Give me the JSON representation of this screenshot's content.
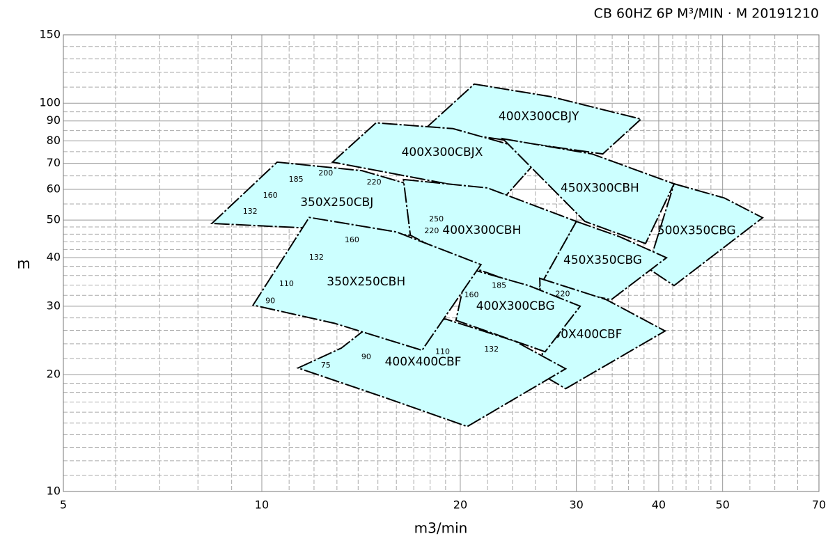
{
  "chart_data": {
    "type": "region",
    "title": "CB 60HZ 6P M³/MIN · M  20191210",
    "x_label": "m3/min",
    "y_label": "m",
    "x_log": true,
    "y_log": true,
    "xlim": [
      5,
      70
    ],
    "ylim": [
      10,
      150
    ],
    "xticks": [
      5,
      10,
      20,
      30,
      40,
      50,
      70
    ],
    "yticks": [
      10,
      20,
      30,
      40,
      50,
      60,
      70,
      80,
      90,
      100,
      150
    ],
    "x_grid": [
      6,
      7,
      8,
      9,
      11,
      12,
      13,
      14,
      15,
      16,
      17,
      18,
      19,
      22,
      24,
      26,
      28,
      32,
      34,
      36,
      38,
      42,
      44,
      46,
      48,
      55,
      60,
      65
    ],
    "y_grid": [
      11,
      12,
      13,
      14,
      15,
      16,
      17,
      18,
      19,
      22,
      24,
      26,
      28,
      32,
      34,
      36,
      38,
      42,
      44,
      46,
      48,
      55,
      65,
      75,
      85,
      95,
      110,
      120,
      130,
      140
    ],
    "grid": true,
    "color": "#ccffff",
    "regions": [
      {
        "name": "400X300CBJY",
        "x": [
          17.7,
          21,
          27.4,
          37.6,
          32.9
        ],
        "y": [
          86,
          112,
          104,
          91,
          74
        ]
      },
      {
        "name": "400X300CBJX",
        "x": [
          12.8,
          14.9,
          19.5,
          26.7,
          23.5
        ],
        "y": [
          70.5,
          89,
          86,
          74,
          58
        ]
      },
      {
        "name": "450X300CBH",
        "x": [
          23.2,
          31.7,
          42.2,
          38.2,
          30.9
        ],
        "y": [
          81,
          74,
          62,
          43.5,
          49.6
        ]
      },
      {
        "name": "500X350CBG",
        "x": [
          42.2,
          50.3,
          57.5,
          42.2,
          38.5
        ],
        "y": [
          62,
          57,
          50.7,
          33.9,
          37.6
        ]
      },
      {
        "name": "350X250CBJ",
        "x": [
          8.4,
          10.55,
          14.2,
          19,
          16.8,
          12.0
        ],
        "y": [
          49,
          70.5,
          67,
          58,
          45.7,
          47.6
        ],
        "kw": [
          {
            "value": 132,
            "x": 9.6,
            "y": 52.6
          },
          {
            "value": 160,
            "x": 10.3,
            "y": 57.8
          },
          {
            "value": 185,
            "x": 11.27,
            "y": 63.6
          },
          {
            "value": 200,
            "x": 12.5,
            "y": 66
          },
          {
            "value": 220,
            "x": 14.8,
            "y": 62.5
          }
        ]
      },
      {
        "name": "400X300CBH",
        "x": [
          16.4,
          22.0,
          30.0,
          26.3,
          21,
          16.8
        ],
        "y": [
          63.6,
          60.5,
          49.6,
          32.8,
          37.6,
          45.7
        ],
        "kw": [
          {
            "value": 250,
            "x": 18.4,
            "y": 50.2
          },
          {
            "value": 220,
            "x": 18.1,
            "y": 46.8
          }
        ]
      },
      {
        "name": "450X350CBG",
        "x": [
          30,
          34.9,
          41.1,
          33.9,
          26.4
        ],
        "y": [
          49.6,
          45.3,
          40,
          31.2,
          33.7
        ]
      },
      {
        "name": "450X400CBF",
        "x": [
          26.4,
          33.3,
          40.9,
          28.9,
          26.7
        ],
        "y": [
          35.4,
          31.2,
          25.9,
          18.4,
          19.9
        ],
        "kw": [
          {
            "value": 220,
            "x": 28.6,
            "y": 32.2
          }
        ]
      },
      {
        "name": "400X400CBF",
        "x": [
          11.35,
          13.2,
          14.5,
          19.0,
          24.2,
          28.9,
          20.5,
          15.3
        ],
        "y": [
          20.8,
          23.4,
          26.5,
          27.8,
          24.4,
          20.7,
          14.7,
          17.5
        ],
        "kw": [
          {
            "value": 75,
            "x": 12.5,
            "y": 21.1
          },
          {
            "value": 90,
            "x": 14.4,
            "y": 22.2
          },
          {
            "value": 110,
            "x": 18.8,
            "y": 22.9
          },
          {
            "value": 132,
            "x": 22.3,
            "y": 23.2
          }
        ]
      },
      {
        "name": "400X300CBG",
        "x": [
          20.5,
          25.4,
          30.4,
          26.9,
          19.7
        ],
        "y": [
          37.6,
          33.9,
          30,
          22.9,
          27.6
        ],
        "kw": [
          {
            "value": 185,
            "x": 22.9,
            "y": 33.9
          },
          {
            "value": 160,
            "x": 20.8,
            "y": 32.0
          }
        ]
      },
      {
        "name": "350X250CBH",
        "x": [
          9.7,
          11.8,
          16.0,
          21.5,
          17.5,
          12.9
        ],
        "y": [
          30.2,
          50.8,
          46.6,
          38.4,
          23.1,
          27.1
        ],
        "kw": [
          {
            "value": 160,
            "x": 13.7,
            "y": 44.4
          },
          {
            "value": 132,
            "x": 12.1,
            "y": 40
          },
          {
            "value": 110,
            "x": 10.9,
            "y": 34.2
          },
          {
            "value": 90,
            "x": 10.3,
            "y": 30.9
          }
        ]
      }
    ]
  }
}
